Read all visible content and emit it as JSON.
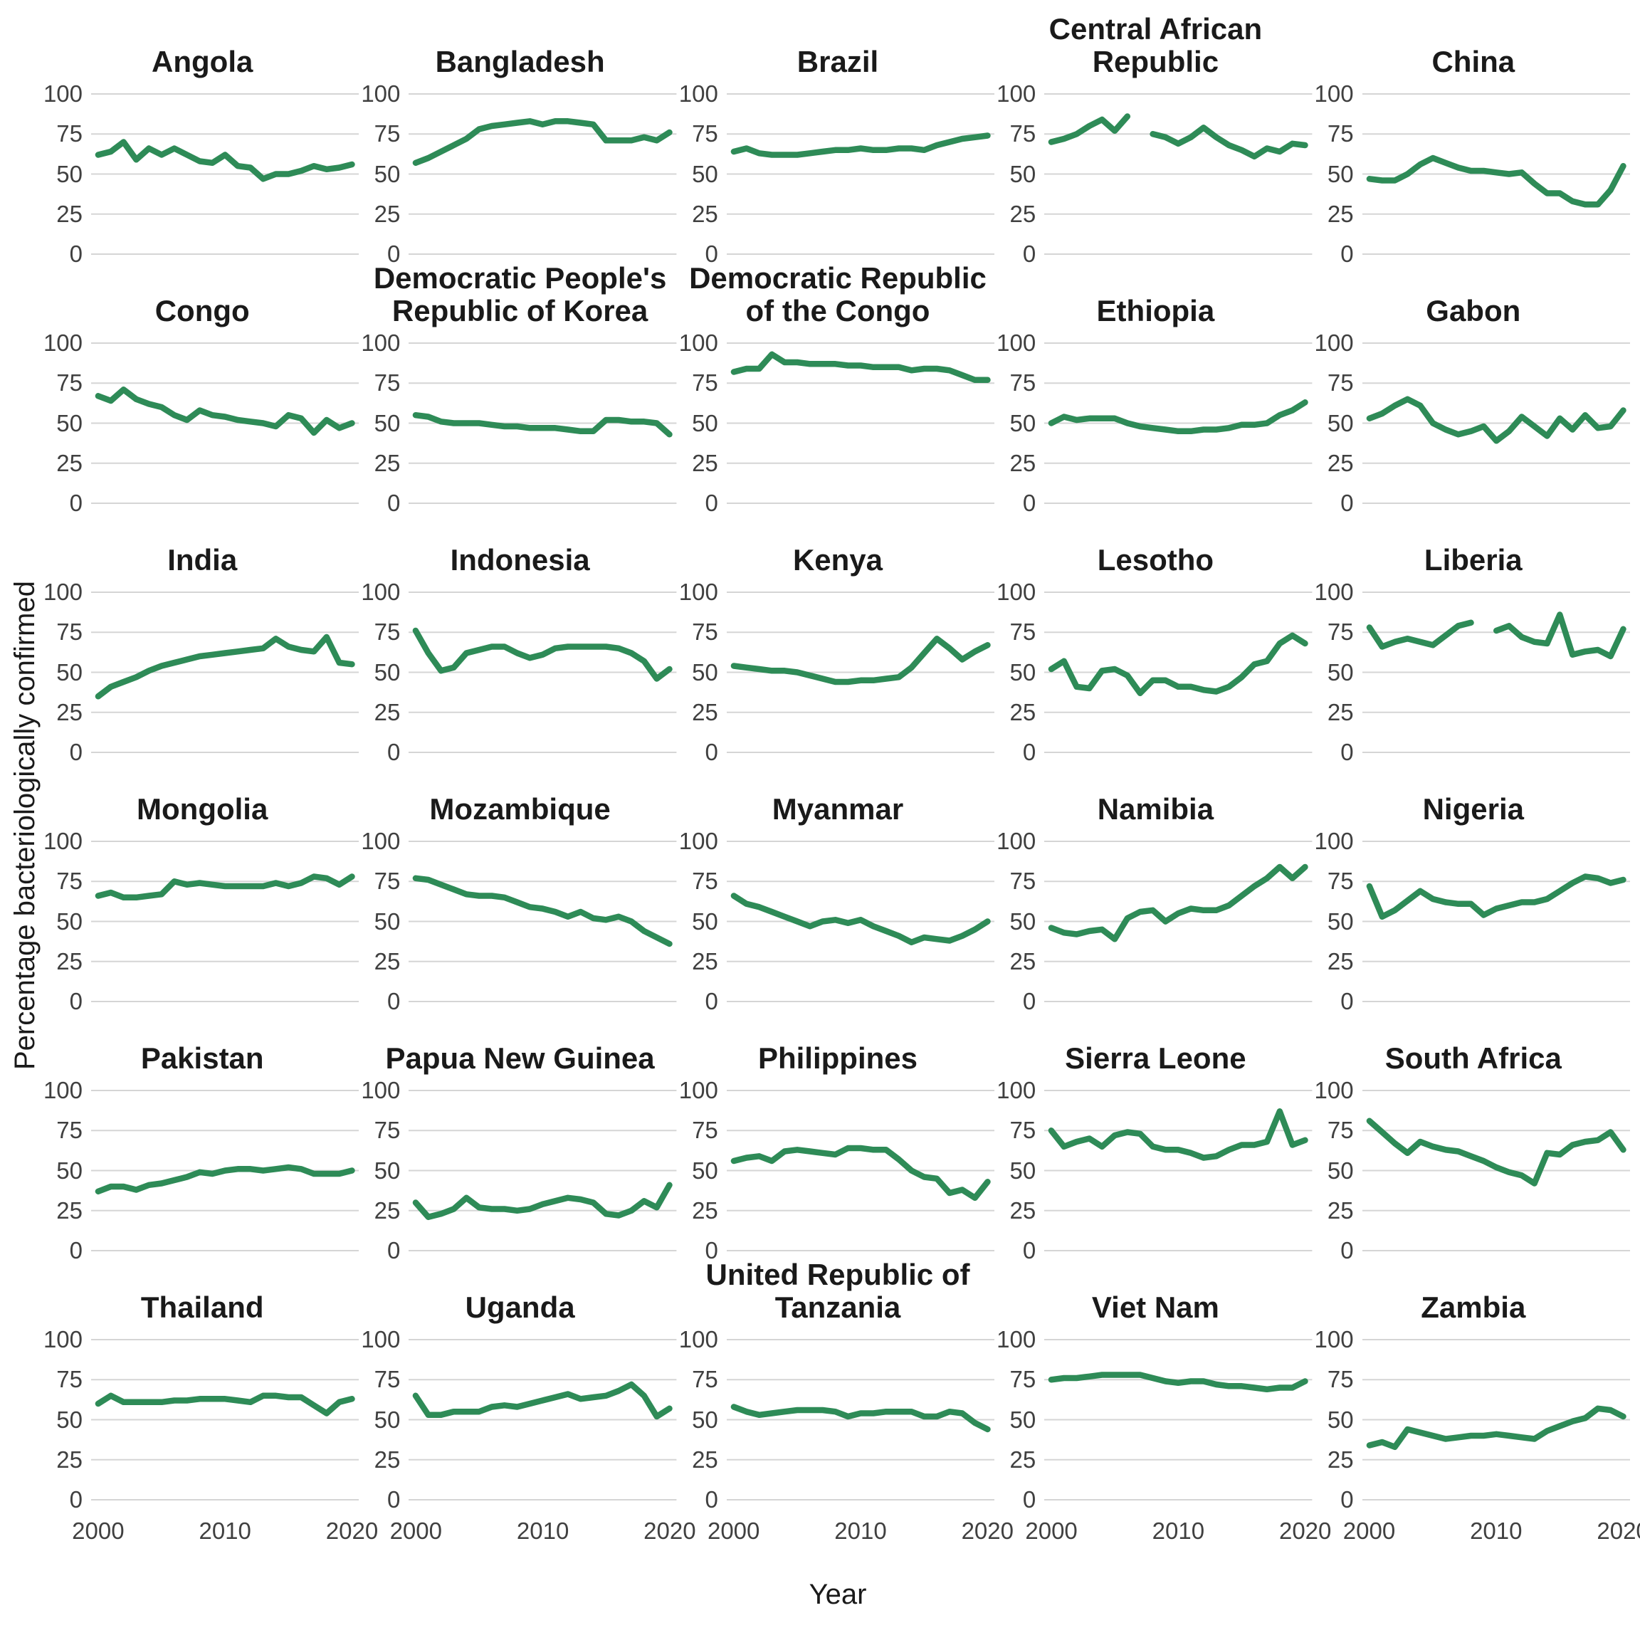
{
  "figure": {
    "y_axis_title": "Percentage bacteriologically confirmed",
    "x_axis_title": "Year",
    "line_color": "#2E8B57",
    "grid_color": "#D5D5D5",
    "background": "#FFFFFF"
  },
  "chart_data": {
    "type": "line",
    "x": [
      2000,
      2001,
      2002,
      2003,
      2004,
      2005,
      2006,
      2007,
      2008,
      2009,
      2010,
      2011,
      2012,
      2013,
      2014,
      2015,
      2016,
      2017,
      2018,
      2019,
      2020
    ],
    "x_ticks": [
      "2000",
      "2010",
      "2020"
    ],
    "y_ticks": [
      "100",
      "75",
      "50",
      "25",
      "0"
    ],
    "ylim": [
      0,
      100
    ],
    "xlim": [
      2000,
      2020
    ],
    "grid": "horizontal-major-only",
    "legend": "none",
    "facets": [
      {
        "title": "Angola",
        "values": [
          62,
          64,
          70,
          59,
          66,
          62,
          66,
          62,
          58,
          57,
          62,
          55,
          54,
          47,
          50,
          50,
          52,
          55,
          53,
          54,
          56
        ]
      },
      {
        "title": "Bangladesh",
        "values": [
          57,
          60,
          64,
          68,
          72,
          78,
          80,
          81,
          82,
          83,
          81,
          83,
          83,
          82,
          81,
          71,
          71,
          71,
          73,
          71,
          76
        ]
      },
      {
        "title": "Brazil",
        "values": [
          64,
          66,
          63,
          62,
          62,
          62,
          63,
          64,
          65,
          65,
          66,
          65,
          65,
          66,
          66,
          65,
          68,
          70,
          72,
          73,
          74
        ]
      },
      {
        "title": "Central African Republic",
        "values": [
          70,
          72,
          75,
          80,
          84,
          77,
          86,
          null,
          75,
          73,
          69,
          73,
          79,
          73,
          68,
          65,
          61,
          66,
          64,
          69,
          68
        ]
      },
      {
        "title": "China",
        "values": [
          47,
          46,
          46,
          50,
          56,
          60,
          57,
          54,
          52,
          52,
          51,
          50,
          51,
          44,
          38,
          38,
          33,
          31,
          31,
          40,
          55
        ]
      },
      {
        "title": "Congo",
        "values": [
          67,
          64,
          71,
          65,
          62,
          60,
          55,
          52,
          58,
          55,
          54,
          52,
          51,
          50,
          48,
          55,
          53,
          44,
          52,
          47,
          50
        ]
      },
      {
        "title": "Democratic People's Republic of Korea",
        "values": [
          55,
          54,
          51,
          50,
          50,
          50,
          49,
          48,
          48,
          47,
          47,
          47,
          46,
          45,
          45,
          52,
          52,
          51,
          51,
          50,
          43
        ]
      },
      {
        "title": "Democratic Republic of the Congo",
        "values": [
          82,
          84,
          84,
          93,
          88,
          88,
          87,
          87,
          87,
          86,
          86,
          85,
          85,
          85,
          83,
          84,
          84,
          83,
          80,
          77,
          77
        ]
      },
      {
        "title": "Ethiopia",
        "values": [
          50,
          54,
          52,
          53,
          53,
          53,
          50,
          48,
          47,
          46,
          45,
          45,
          46,
          46,
          47,
          49,
          49,
          50,
          55,
          58,
          63
        ]
      },
      {
        "title": "Gabon",
        "values": [
          53,
          56,
          61,
          65,
          61,
          50,
          46,
          43,
          45,
          48,
          39,
          45,
          54,
          48,
          42,
          53,
          46,
          55,
          47,
          48,
          58
        ]
      },
      {
        "title": "India",
        "values": [
          35,
          41,
          44,
          47,
          51,
          54,
          56,
          58,
          60,
          61,
          62,
          63,
          64,
          65,
          71,
          66,
          64,
          63,
          72,
          56,
          55
        ]
      },
      {
        "title": "Indonesia",
        "values": [
          76,
          62,
          51,
          53,
          62,
          64,
          66,
          66,
          62,
          59,
          61,
          65,
          66,
          66,
          66,
          66,
          65,
          62,
          57,
          46,
          52
        ]
      },
      {
        "title": "Kenya",
        "values": [
          54,
          53,
          52,
          51,
          51,
          50,
          48,
          46,
          44,
          44,
          45,
          45,
          46,
          47,
          53,
          62,
          71,
          65,
          58,
          63,
          67
        ]
      },
      {
        "title": "Lesotho",
        "values": [
          52,
          57,
          41,
          40,
          51,
          52,
          48,
          37,
          45,
          45,
          41,
          41,
          39,
          38,
          41,
          47,
          55,
          57,
          68,
          73,
          68
        ]
      },
      {
        "title": "Liberia",
        "values": [
          78,
          66,
          69,
          71,
          69,
          67,
          73,
          79,
          81,
          null,
          76,
          79,
          72,
          69,
          68,
          86,
          61,
          63,
          64,
          60,
          77
        ]
      },
      {
        "title": "Mongolia",
        "values": [
          66,
          68,
          65,
          65,
          66,
          67,
          75,
          73,
          74,
          73,
          72,
          72,
          72,
          72,
          74,
          72,
          74,
          78,
          77,
          73,
          78
        ]
      },
      {
        "title": "Mozambique",
        "values": [
          77,
          76,
          73,
          70,
          67,
          66,
          66,
          65,
          62,
          59,
          58,
          56,
          53,
          56,
          52,
          51,
          53,
          50,
          44,
          40,
          36
        ]
      },
      {
        "title": "Myanmar",
        "values": [
          66,
          61,
          59,
          56,
          53,
          50,
          47,
          50,
          51,
          49,
          51,
          47,
          44,
          41,
          37,
          40,
          39,
          38,
          41,
          45,
          50
        ]
      },
      {
        "title": "Namibia",
        "values": [
          46,
          43,
          42,
          44,
          45,
          39,
          52,
          56,
          57,
          50,
          55,
          58,
          57,
          57,
          60,
          66,
          72,
          77,
          84,
          77,
          84
        ]
      },
      {
        "title": "Nigeria",
        "values": [
          72,
          53,
          57,
          63,
          69,
          64,
          62,
          61,
          61,
          54,
          58,
          60,
          62,
          62,
          64,
          69,
          74,
          78,
          77,
          74,
          76
        ]
      },
      {
        "title": "Pakistan",
        "values": [
          37,
          40,
          40,
          38,
          41,
          42,
          44,
          46,
          49,
          48,
          50,
          51,
          51,
          50,
          51,
          52,
          51,
          48,
          48,
          48,
          50
        ]
      },
      {
        "title": "Papua New Guinea",
        "values": [
          30,
          21,
          23,
          26,
          33,
          27,
          26,
          26,
          25,
          26,
          29,
          31,
          33,
          32,
          30,
          23,
          22,
          25,
          31,
          27,
          41
        ]
      },
      {
        "title": "Philippines",
        "values": [
          56,
          58,
          59,
          56,
          62,
          63,
          62,
          61,
          60,
          64,
          64,
          63,
          63,
          57,
          50,
          46,
          45,
          36,
          38,
          33,
          43
        ]
      },
      {
        "title": "Sierra Leone",
        "values": [
          75,
          65,
          68,
          70,
          65,
          72,
          74,
          73,
          65,
          63,
          63,
          61,
          58,
          59,
          63,
          66,
          66,
          68,
          87,
          66,
          69
        ]
      },
      {
        "title": "South Africa",
        "values": [
          81,
          74,
          67,
          61,
          68,
          65,
          63,
          62,
          59,
          56,
          52,
          49,
          47,
          42,
          61,
          60,
          66,
          68,
          69,
          74,
          63
        ]
      },
      {
        "title": "Thailand",
        "values": [
          60,
          65,
          61,
          61,
          61,
          61,
          62,
          62,
          63,
          63,
          63,
          62,
          61,
          65,
          65,
          64,
          64,
          59,
          54,
          61,
          63
        ]
      },
      {
        "title": "Uganda",
        "values": [
          65,
          53,
          53,
          55,
          55,
          55,
          58,
          59,
          58,
          60,
          62,
          64,
          66,
          63,
          64,
          65,
          68,
          72,
          65,
          52,
          57
        ]
      },
      {
        "title": "United Republic of Tanzania",
        "values": [
          58,
          55,
          53,
          54,
          55,
          56,
          56,
          56,
          55,
          52,
          54,
          54,
          55,
          55,
          55,
          52,
          52,
          55,
          54,
          48,
          44
        ]
      },
      {
        "title": "Viet Nam",
        "values": [
          75,
          76,
          76,
          77,
          78,
          78,
          78,
          78,
          76,
          74,
          73,
          74,
          74,
          72,
          71,
          71,
          70,
          69,
          70,
          70,
          74
        ]
      },
      {
        "title": "Zambia",
        "values": [
          34,
          36,
          33,
          44,
          42,
          40,
          38,
          39,
          40,
          40,
          41,
          40,
          39,
          38,
          43,
          46,
          49,
          51,
          57,
          56,
          52
        ]
      }
    ]
  }
}
